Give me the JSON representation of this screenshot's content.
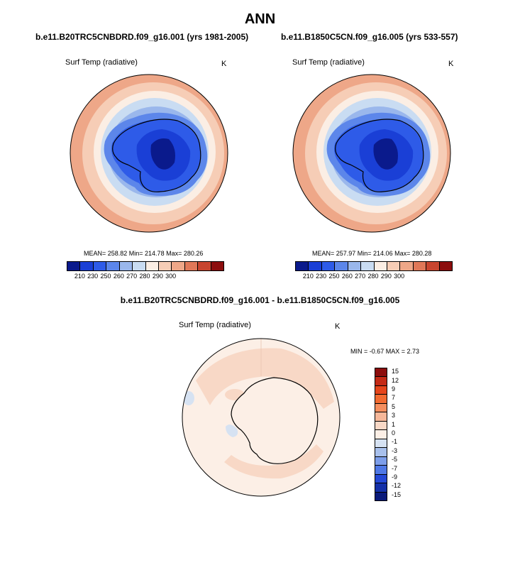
{
  "main_title": "ANN",
  "panels": [
    {
      "case_title": "b.e11.B20TRC5CNBDRD.f09_g16.001 (yrs 1981-2005)",
      "variable": "Surf Temp (radiative)",
      "units": "K",
      "stats": "MEAN= 258.82  Min= 214.78  Max= 280.26"
    },
    {
      "case_title": "b.e11.B1850C5CN.f09_g16.005 (yrs 533-557)",
      "variable": "Surf Temp (radiative)",
      "units": "K",
      "stats": "MEAN= 257.97  Min= 214.06  Max= 280.28"
    }
  ],
  "diff_panel": {
    "title": "b.e11.B20TRC5CNBDRD.f09_g16.001 - b.e11.B1850C5CN.f09_g16.005",
    "variable": "Surf Temp (radiative)",
    "units": "K",
    "stats": "MIN =  -0.67 MAX =   2.73"
  },
  "colorbar_abs": {
    "colors": [
      "#0a1a8c",
      "#1a3fd6",
      "#2e5be8",
      "#5c86ea",
      "#9ab7ec",
      "#c9dcf2",
      "#fbeee4",
      "#f6cdb6",
      "#eea788",
      "#e07858",
      "#c8452f",
      "#8c0d0d"
    ],
    "labels": [
      "210",
      "230",
      "250",
      "260",
      "270",
      "280",
      "290",
      "300"
    ]
  },
  "colorbar_diff": {
    "colors": [
      "#8c0d0d",
      "#c42a16",
      "#e5451b",
      "#f26a30",
      "#f58e5e",
      "#f6b799",
      "#f8d8c6",
      "#fcefe6",
      "#d6e2f2",
      "#a8c0ec",
      "#7d9eea",
      "#4f78e6",
      "#2448d6",
      "#1430a8",
      "#0a1a7a"
    ],
    "labels": [
      "15",
      "12",
      "9",
      "7",
      "5",
      "3",
      "1",
      "0",
      "-1",
      "-3",
      "-5",
      "-7",
      "-9",
      "-12",
      "-15"
    ]
  }
}
